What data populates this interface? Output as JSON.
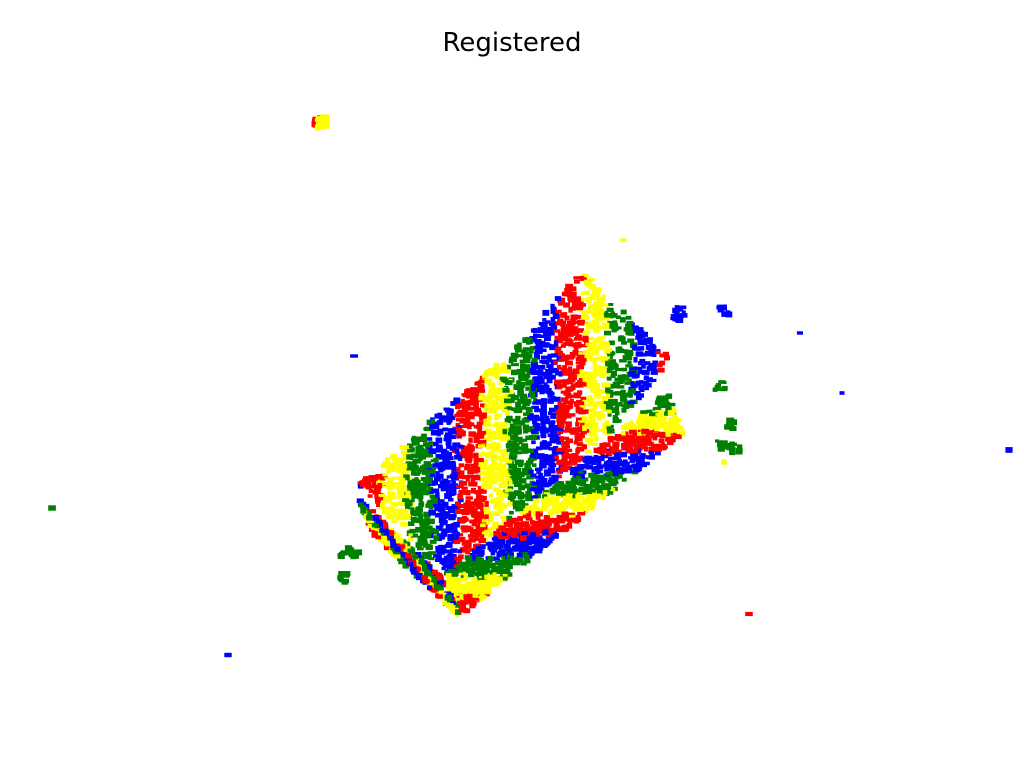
{
  "title": "Registered",
  "background_color": "#ffffff",
  "point_clouds": [
    {
      "color": "#ff0000"
    },
    {
      "color": "#ffff00"
    },
    {
      "color": "#008000"
    },
    {
      "color": "#0000ff"
    }
  ]
}
